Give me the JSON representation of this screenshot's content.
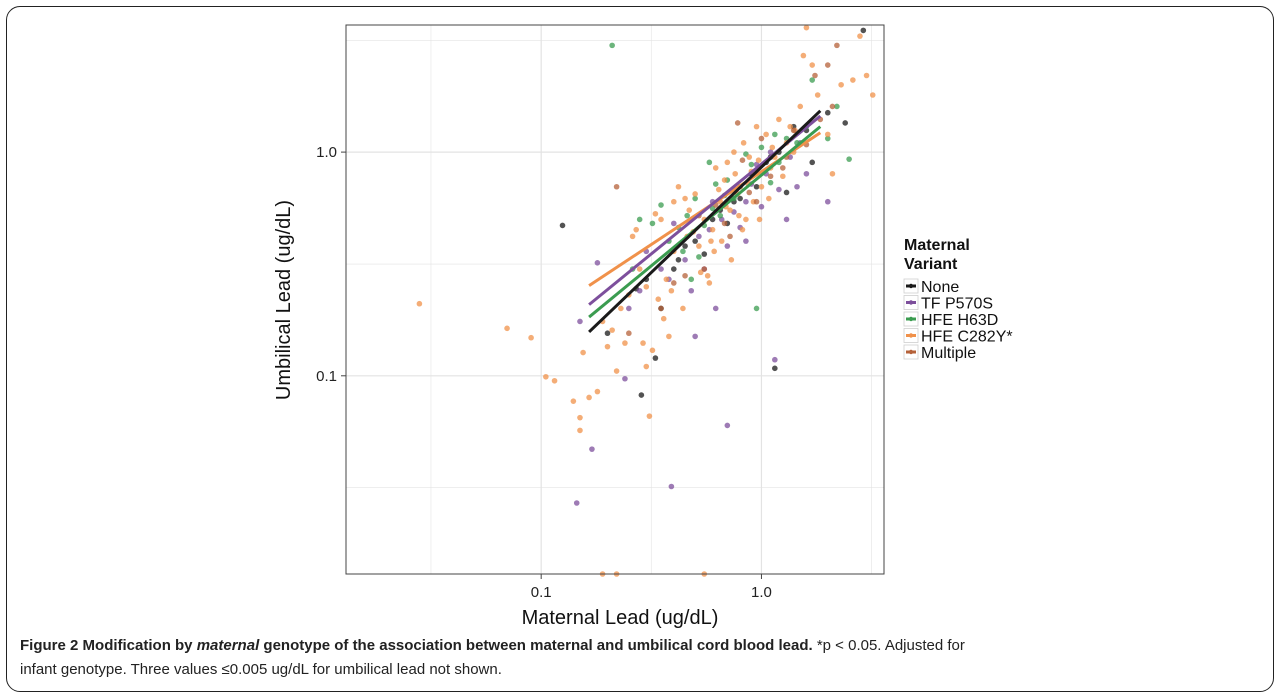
{
  "caption": {
    "figure_label": "Figure 2",
    "title_pre": "Modification by ",
    "title_italic": "maternal",
    "title_post": " genotype of the association between maternal and umbilical cord blood lead.",
    "note_line1": " *p < 0.05. Adjusted for",
    "note_line2": "infant genotype. Three values ≤0.005 ug/dL for umbilical lead not shown."
  },
  "chart_data": {
    "type": "scatter",
    "title": "",
    "xlabel": "Maternal Lead (ug/dL)",
    "ylabel": "Umbilical Lead (ug/dL)",
    "x_scale": "log10",
    "y_scale": "log10",
    "xlim": [
      0.013,
      3.6
    ],
    "ylim": [
      0.013,
      3.7
    ],
    "x_ticks": [
      {
        "value": 0.1,
        "label": "0.1"
      },
      {
        "value": 1.0,
        "label": "1.0"
      }
    ],
    "y_ticks": [
      {
        "value": 0.1,
        "label": "0.1"
      },
      {
        "value": 1.0,
        "label": "1.0"
      }
    ],
    "minor_gridlines": [
      0.0316,
      0.316,
      3.16
    ],
    "grid": true,
    "background": "#ffffff",
    "grid_color": "#e3e3e3",
    "legend": {
      "title_line1": "Maternal",
      "title_line2": "Variant",
      "placement": "right"
    },
    "series": [
      {
        "name": "None",
        "color": "#1a1a1a",
        "fit": {
          "x": [
            0.165,
            1.85
          ],
          "y": [
            0.157,
            1.53
          ]
        },
        "points": [
          [
            0.125,
            0.47
          ],
          [
            0.2,
            0.155
          ],
          [
            0.27,
            0.245
          ],
          [
            0.33,
            0.12
          ],
          [
            0.285,
            0.082
          ],
          [
            1.15,
            0.108
          ],
          [
            2.9,
            3.5
          ],
          [
            2.4,
            1.35
          ],
          [
            0.45,
            0.38
          ],
          [
            0.6,
            0.5
          ],
          [
            0.75,
            0.6
          ],
          [
            0.9,
            0.8
          ],
          [
            1.05,
            0.9
          ],
          [
            1.3,
            0.66
          ],
          [
            1.6,
            1.25
          ],
          [
            0.4,
            0.3
          ],
          [
            0.5,
            0.4
          ],
          [
            0.7,
            0.48
          ],
          [
            1.2,
            1.0
          ],
          [
            0.95,
            0.7
          ],
          [
            0.35,
            0.2
          ],
          [
            2.0,
            1.5
          ],
          [
            1.4,
            1.3
          ],
          [
            0.55,
            0.35
          ],
          [
            0.8,
            0.62
          ],
          [
            1.7,
            0.9
          ],
          [
            0.3,
            0.27
          ],
          [
            0.65,
            0.55
          ],
          [
            0.42,
            0.33
          ],
          [
            1.1,
            0.95
          ]
        ]
      },
      {
        "name": "TF P570S",
        "color": "#7d4f9c",
        "fit": {
          "x": [
            0.165,
            1.85
          ],
          "y": [
            0.208,
            1.45
          ]
        },
        "points": [
          [
            0.145,
            0.027
          ],
          [
            0.17,
            0.047
          ],
          [
            0.24,
            0.097
          ],
          [
            0.39,
            0.032
          ],
          [
            0.7,
            0.06
          ],
          [
            1.15,
            0.118
          ],
          [
            0.15,
            0.175
          ],
          [
            0.18,
            0.32
          ],
          [
            0.5,
            0.15
          ],
          [
            0.62,
            0.2
          ],
          [
            0.28,
            0.24
          ],
          [
            0.35,
            0.3
          ],
          [
            0.45,
            0.33
          ],
          [
            0.52,
            0.42
          ],
          [
            0.58,
            0.45
          ],
          [
            0.66,
            0.5
          ],
          [
            0.75,
            0.54
          ],
          [
            0.85,
            0.6
          ],
          [
            1.0,
            0.57
          ],
          [
            1.2,
            0.68
          ],
          [
            1.45,
            0.7
          ],
          [
            1.6,
            0.8
          ],
          [
            2.0,
            0.6
          ],
          [
            0.9,
            0.72
          ],
          [
            1.1,
            1.0
          ],
          [
            0.4,
            0.48
          ],
          [
            0.3,
            0.36
          ],
          [
            1.3,
            0.5
          ],
          [
            0.8,
            0.46
          ],
          [
            0.55,
            0.3
          ],
          [
            0.7,
            0.38
          ],
          [
            0.6,
            0.6
          ],
          [
            1.05,
            0.8
          ],
          [
            0.95,
            0.88
          ],
          [
            0.48,
            0.24
          ],
          [
            0.25,
            0.2
          ],
          [
            1.35,
            0.95
          ],
          [
            1.5,
            1.1
          ],
          [
            0.38,
            0.27
          ],
          [
            0.85,
            0.4
          ]
        ]
      },
      {
        "name": "HFE H63D",
        "color": "#3b9c50",
        "fit": {
          "x": [
            0.165,
            1.85
          ],
          "y": [
            0.183,
            1.3
          ]
        },
        "points": [
          [
            0.21,
            3.0
          ],
          [
            0.95,
            0.2
          ],
          [
            1.7,
            2.1
          ],
          [
            2.5,
            0.93
          ],
          [
            2.0,
            1.15
          ],
          [
            0.35,
            0.58
          ],
          [
            0.5,
            0.62
          ],
          [
            0.58,
            0.9
          ],
          [
            0.62,
            0.72
          ],
          [
            0.7,
            0.75
          ],
          [
            0.42,
            0.46
          ],
          [
            0.44,
            0.36
          ],
          [
            0.48,
            0.27
          ],
          [
            0.55,
            0.47
          ],
          [
            0.65,
            0.52
          ],
          [
            0.8,
            0.7
          ],
          [
            0.9,
            0.88
          ],
          [
            1.0,
            1.05
          ],
          [
            1.2,
            0.9
          ],
          [
            1.3,
            1.15
          ],
          [
            0.32,
            0.48
          ],
          [
            0.28,
            0.5
          ],
          [
            0.26,
            0.3
          ],
          [
            0.38,
            0.4
          ],
          [
            0.6,
            0.56
          ],
          [
            0.75,
            0.62
          ],
          [
            1.1,
            0.73
          ],
          [
            1.45,
            1.1
          ],
          [
            0.52,
            0.34
          ],
          [
            0.85,
            0.98
          ],
          [
            0.46,
            0.52
          ],
          [
            0.68,
            0.64
          ],
          [
            1.15,
            1.2
          ],
          [
            1.6,
            1.3
          ],
          [
            2.2,
            1.6
          ]
        ]
      },
      {
        "name": "HFE C282Y*",
        "color": "#f0914a",
        "fit": {
          "x": [
            0.165,
            1.85
          ],
          "y": [
            0.253,
            1.22
          ]
        },
        "points": [
          [
            0.028,
            0.21
          ],
          [
            0.07,
            0.163
          ],
          [
            0.09,
            0.148
          ],
          [
            0.105,
            0.099
          ],
          [
            0.115,
            0.095
          ],
          [
            0.14,
            0.077
          ],
          [
            0.15,
            0.065
          ],
          [
            0.15,
            0.057
          ],
          [
            0.155,
            0.127
          ],
          [
            0.165,
            0.08
          ],
          [
            0.18,
            0.085
          ],
          [
            0.2,
            0.135
          ],
          [
            0.19,
            0.175
          ],
          [
            0.21,
            0.16
          ],
          [
            0.22,
            0.105
          ],
          [
            0.23,
            0.2
          ],
          [
            0.24,
            0.14
          ],
          [
            0.25,
            0.23
          ],
          [
            0.26,
            0.42
          ],
          [
            0.27,
            0.45
          ],
          [
            0.29,
            0.14
          ],
          [
            0.3,
            0.11
          ],
          [
            0.31,
            0.066
          ],
          [
            0.32,
            0.13
          ],
          [
            0.33,
            0.53
          ],
          [
            0.35,
            0.5
          ],
          [
            0.36,
            0.18
          ],
          [
            0.38,
            0.15
          ],
          [
            0.4,
            0.6
          ],
          [
            0.42,
            0.7
          ],
          [
            0.45,
            0.62
          ],
          [
            0.47,
            0.55
          ],
          [
            0.5,
            0.65
          ],
          [
            0.52,
            0.38
          ],
          [
            0.55,
            0.5
          ],
          [
            0.57,
            0.28
          ],
          [
            0.6,
            0.45
          ],
          [
            0.62,
            0.85
          ],
          [
            0.65,
            0.6
          ],
          [
            0.68,
            0.75
          ],
          [
            0.7,
            0.9
          ],
          [
            0.72,
            0.55
          ],
          [
            0.75,
            1.0
          ],
          [
            0.78,
            0.65
          ],
          [
            0.8,
            0.7
          ],
          [
            0.83,
            1.1
          ],
          [
            0.85,
            0.5
          ],
          [
            0.88,
            0.95
          ],
          [
            0.9,
            0.82
          ],
          [
            0.95,
            1.3
          ],
          [
            1.0,
            0.7
          ],
          [
            1.05,
            1.2
          ],
          [
            1.1,
            0.85
          ],
          [
            1.15,
            0.95
          ],
          [
            1.2,
            1.4
          ],
          [
            1.3,
            1.1
          ],
          [
            1.4,
            1.0
          ],
          [
            1.5,
            1.6
          ],
          [
            1.55,
            2.7
          ],
          [
            1.7,
            2.45
          ],
          [
            1.8,
            1.8
          ],
          [
            2.0,
            1.2
          ],
          [
            2.1,
            0.8
          ],
          [
            2.3,
            2.0
          ],
          [
            2.6,
            2.1
          ],
          [
            2.8,
            3.3
          ],
          [
            3.0,
            2.2
          ],
          [
            3.2,
            1.8
          ],
          [
            1.6,
            3.6
          ],
          [
            0.19,
            0.013
          ],
          [
            0.22,
            0.013
          ],
          [
            0.55,
            0.013
          ],
          [
            0.37,
            0.27
          ],
          [
            0.44,
            0.2
          ],
          [
            0.58,
            0.26
          ],
          [
            0.66,
            0.4
          ],
          [
            0.73,
            0.33
          ],
          [
            0.82,
            0.45
          ],
          [
            0.92,
            0.6
          ],
          [
            0.98,
            0.5
          ],
          [
            1.25,
            0.78
          ],
          [
            0.3,
            0.25
          ],
          [
            0.34,
            0.22
          ],
          [
            0.49,
            0.44
          ],
          [
            0.61,
            0.36
          ],
          [
            0.76,
            0.8
          ],
          [
            1.08,
            0.62
          ],
          [
            1.35,
            1.3
          ],
          [
            0.4,
            0.36
          ],
          [
            0.53,
            0.29
          ],
          [
            0.69,
            0.57
          ],
          [
            0.87,
            0.72
          ],
          [
            1.12,
            1.05
          ],
          [
            0.28,
            0.3
          ],
          [
            0.46,
            0.42
          ],
          [
            0.64,
            0.68
          ],
          [
            0.97,
            0.92
          ],
          [
            1.42,
            1.25
          ],
          [
            0.39,
            0.24
          ],
          [
            0.59,
            0.4
          ],
          [
            0.79,
            0.52
          ]
        ]
      },
      {
        "name": "Multiple",
        "color": "#b5623a",
        "fit": {
          "x": [],
          "y": []
        },
        "points": [
          [
            0.22,
            0.7
          ],
          [
            0.52,
            0.52
          ],
          [
            0.78,
            1.35
          ],
          [
            1.0,
            1.15
          ],
          [
            0.68,
            0.48
          ],
          [
            1.25,
            0.85
          ],
          [
            1.6,
            1.08
          ],
          [
            2.1,
            1.6
          ],
          [
            1.75,
            2.2
          ],
          [
            2.0,
            2.45
          ],
          [
            2.2,
            3.0
          ],
          [
            0.35,
            0.2
          ],
          [
            0.25,
            0.155
          ],
          [
            0.45,
            0.28
          ],
          [
            0.62,
            0.58
          ],
          [
            0.88,
            0.66
          ],
          [
            1.1,
            0.78
          ],
          [
            1.4,
            1.25
          ],
          [
            0.55,
            0.3
          ],
          [
            0.82,
            0.92
          ],
          [
            0.4,
            0.26
          ],
          [
            0.95,
            0.6
          ],
          [
            1.3,
            0.95
          ],
          [
            1.85,
            1.4
          ],
          [
            0.72,
            0.42
          ]
        ]
      }
    ]
  }
}
